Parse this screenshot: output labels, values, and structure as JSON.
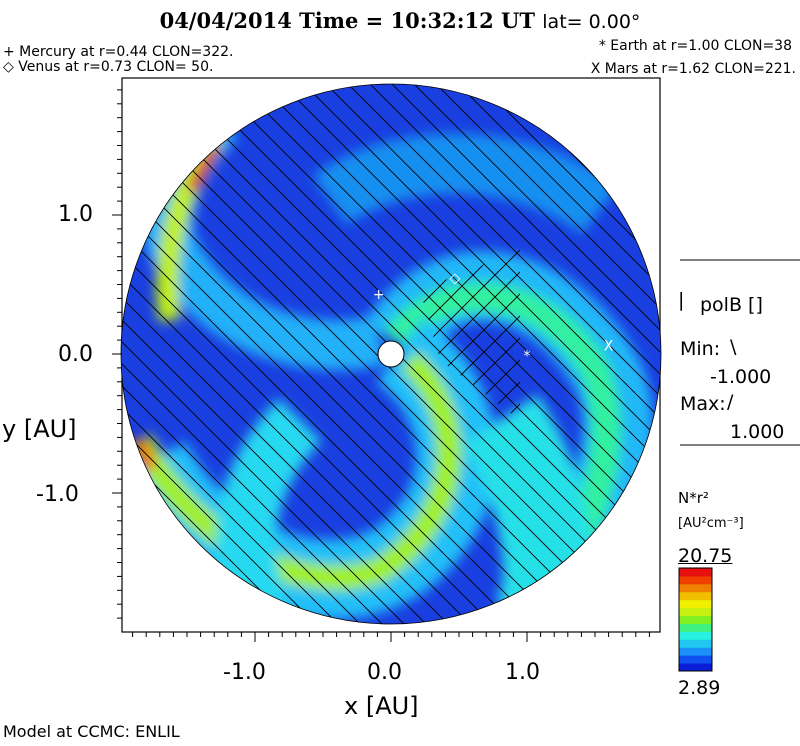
{
  "chart_data": {
    "type": "heatmap",
    "title": "04/04/2014 Time = 10:32:12 UT",
    "lat_label": "lat= 0.00°",
    "xlabel": "x [AU]",
    "ylabel": "y [AU]",
    "xlim": [
      -1.98,
      1.98
    ],
    "ylim": [
      -1.98,
      1.98
    ],
    "x_ticks": [
      "-1.0",
      "0.0",
      "1.0"
    ],
    "y_ticks": [
      "1.0",
      "0.0",
      "-1.0"
    ],
    "x_tick_values": [
      -1.0,
      0.0,
      1.0
    ],
    "y_tick_values": [
      1.0,
      0.0,
      -1.0
    ],
    "planets": [
      {
        "symbol": "+",
        "label": "+ Mercury at r=0.44 CLON=322.",
        "r": 0.44,
        "clon": 322,
        "x": -0.09,
        "y": 0.43
      },
      {
        "symbol": "◇",
        "label": "◇ Venus at r=0.73 CLON= 50.",
        "r": 0.73,
        "clon": 50,
        "x": 0.47,
        "y": 0.55
      },
      {
        "symbol": "*",
        "label": "* Earth at  r=1.00 CLON=38",
        "r": 1.0,
        "clon": 38,
        "x": 1.0,
        "y": -0.01
      },
      {
        "symbol": "X",
        "label": "X Mars at r=1.62 CLON=221.",
        "r": 1.62,
        "clon": 221,
        "x": 1.6,
        "y": 0.06
      }
    ],
    "overlay": {
      "name": "polB []",
      "marker": "|",
      "min_label": "Min:",
      "min_symbol": "\\",
      "min": "-1.000",
      "max_label": "Max:",
      "max_symbol": "/",
      "max": "1.000"
    },
    "colorbar": {
      "quantity": "N*r²",
      "units": "[AU²cm⁻³]",
      "max": "20.75",
      "min": "2.89",
      "colors": [
        "#0a1ed8",
        "#1050f0",
        "#1a90f8",
        "#20c8f0",
        "#28f0e0",
        "#40f080",
        "#80f020",
        "#c8f010",
        "#f0f000",
        "#f0c000",
        "#f08000",
        "#f04000",
        "#e81010"
      ]
    },
    "footer": "Model at CCMC: ENLIL"
  }
}
